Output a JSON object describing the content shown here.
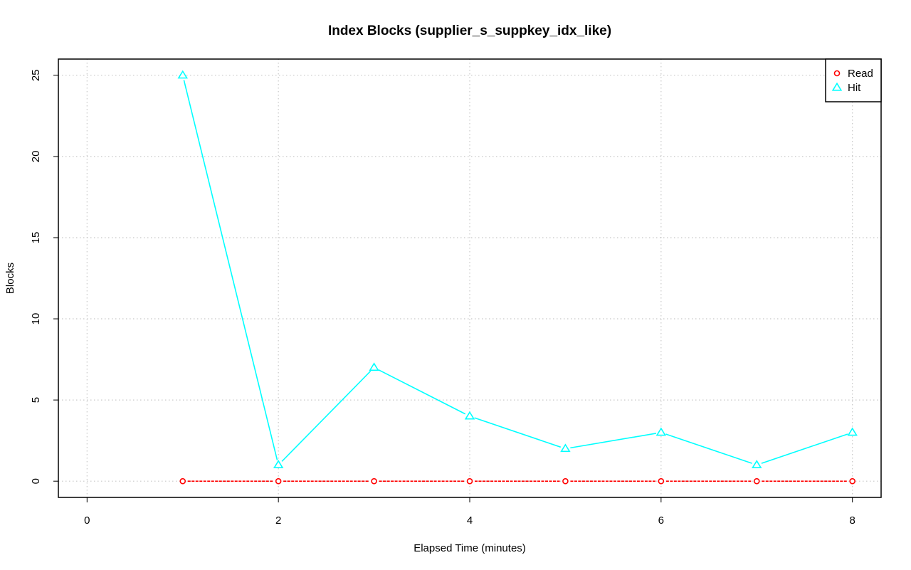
{
  "chart_data": {
    "type": "line",
    "title": "Index Blocks (supplier_s_suppkey_idx_like)",
    "xlabel": "Elapsed Time (minutes)",
    "ylabel": "Blocks",
    "xlim": [
      -0.3,
      8.3
    ],
    "ylim": [
      -1,
      26
    ],
    "x_ticks": [
      0,
      2,
      4,
      6,
      8
    ],
    "y_ticks": [
      0,
      5,
      10,
      15,
      20,
      25
    ],
    "grid": true,
    "legend_position": "top-right",
    "x": [
      1,
      2,
      3,
      4,
      5,
      6,
      7,
      8
    ],
    "series": [
      {
        "name": "Read",
        "color": "#ff0000",
        "marker": "circle",
        "line": "dashed",
        "values": [
          0,
          0,
          0,
          0,
          0,
          0,
          0,
          0
        ]
      },
      {
        "name": "Hit",
        "color": "#00ffff",
        "marker": "triangle",
        "line": "solid",
        "values": [
          25,
          1,
          7,
          4,
          2,
          3,
          1,
          3
        ]
      }
    ]
  }
}
